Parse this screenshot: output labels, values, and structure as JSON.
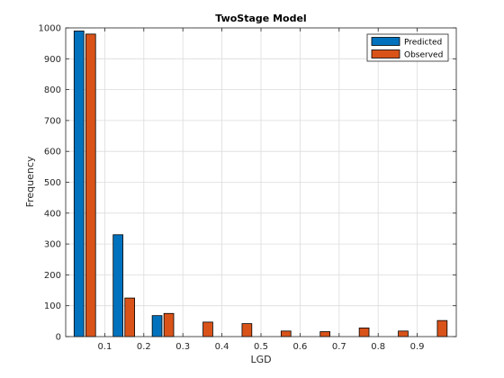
{
  "chart_data": {
    "type": "bar",
    "title": "TwoStage Model",
    "xlabel": "LGD",
    "ylabel": "Frequency",
    "xlim": [
      0,
      1
    ],
    "ylim": [
      0,
      1000
    ],
    "x_ticks": [
      "0.1",
      "0.2",
      "0.3",
      "0.4",
      "0.5",
      "0.6",
      "0.7",
      "0.8",
      "0.9"
    ],
    "y_ticks": [
      "0",
      "100",
      "200",
      "300",
      "400",
      "500",
      "600",
      "700",
      "800",
      "900",
      "1000"
    ],
    "bin_centers": [
      0.05,
      0.15,
      0.25,
      0.35,
      0.45,
      0.55,
      0.65,
      0.75,
      0.85,
      0.95
    ],
    "grid": true,
    "legend_position": "top-right",
    "series": [
      {
        "name": "Predicted",
        "color": "#0072BD",
        "values": [
          990,
          330,
          68,
          0,
          0,
          0,
          0,
          0,
          0,
          0
        ]
      },
      {
        "name": "Observed",
        "color": "#D95319",
        "values": [
          980,
          125,
          75,
          47,
          42,
          18,
          16,
          28,
          18,
          52
        ]
      }
    ]
  }
}
